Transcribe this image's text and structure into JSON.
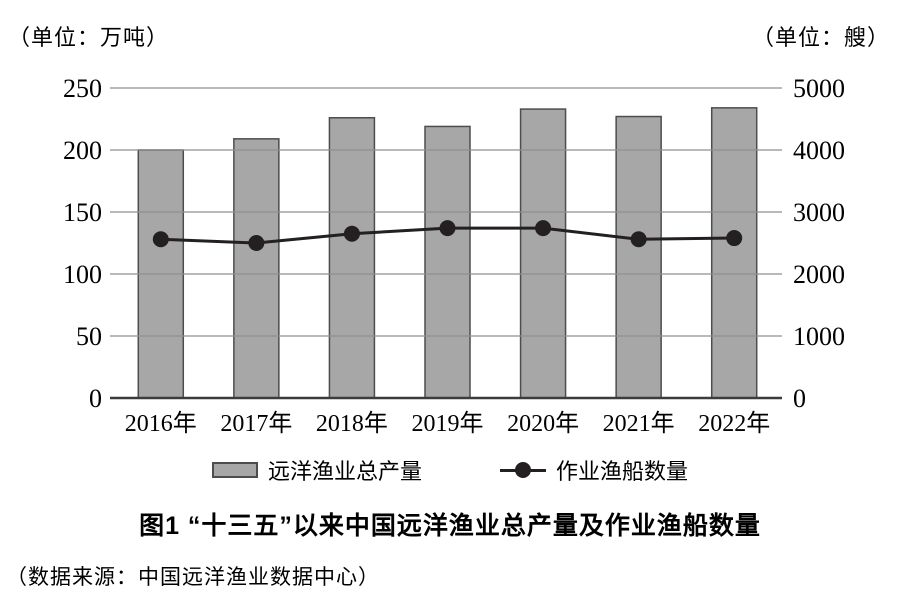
{
  "colors": {
    "bar_fill": "#a7a7a7",
    "bar_stroke": "#4d4d4d",
    "gridline": "#8f8f8f",
    "baseline": "#3c3c3c",
    "line_series": "#241f20",
    "text": "#000000"
  },
  "chart_data": {
    "type": "bar",
    "subtype": "bar+line combo, dual axis",
    "title": "图1 “十三五”以来中国远洋渔业总产量及作业渔船数量",
    "source": "（数据来源：中国远洋渔业数据中心）",
    "categories": [
      "2016年",
      "2017年",
      "2018年",
      "2019年",
      "2020年",
      "2021年",
      "2022年"
    ],
    "series": [
      {
        "name": "远洋渔业总产量",
        "type": "bar",
        "axis": "left",
        "values": [
          200,
          209,
          226,
          219,
          233,
          227,
          234
        ]
      },
      {
        "name": "作业渔船数量",
        "type": "line",
        "axis": "right",
        "values": [
          2560,
          2500,
          2650,
          2740,
          2740,
          2560,
          2580
        ]
      }
    ],
    "left_axis": {
      "label": "（单位：万吨）",
      "ticks": [
        0,
        50,
        100,
        150,
        200,
        250
      ],
      "min": 0,
      "max": 250
    },
    "right_axis": {
      "label": "（单位：艘）",
      "ticks": [
        0,
        1000,
        2000,
        3000,
        4000,
        5000
      ],
      "min": 0,
      "max": 5000
    },
    "grid": true,
    "legend_position": "bottom"
  }
}
